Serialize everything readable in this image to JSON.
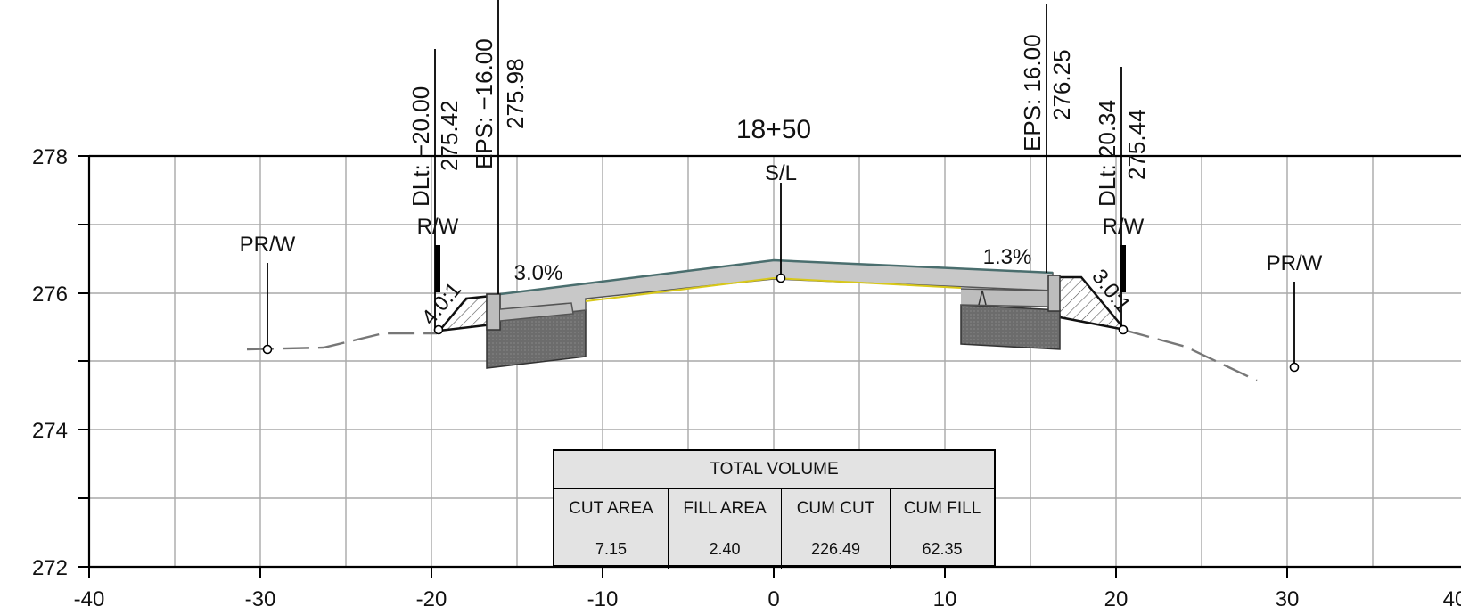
{
  "station": "18+50",
  "centerline_label": "S/L",
  "axes": {
    "x_ticks": [
      "-40",
      "-30",
      "-20",
      "-10",
      "0",
      "10",
      "20",
      "30",
      "40"
    ],
    "y_ticks": [
      "278",
      "276",
      "274",
      "272"
    ]
  },
  "labels": {
    "prw_left": "PR/W",
    "prw_right": "PR/W",
    "rw_left": "R/W",
    "rw_right": "R/W",
    "slope_left_pct": "3.0%",
    "slope_right_pct": "1.3%",
    "side_slope_left": "4.0:1",
    "side_slope_right": "3.0:1"
  },
  "callouts": {
    "dlt_left": {
      "offset": "DLt:  −20.00",
      "elev": "275.42"
    },
    "eps_left": {
      "offset": "EPS:  −16.00",
      "elev": "275.98"
    },
    "eps_right": {
      "offset": "EPS:  16.00",
      "elev": "276.25"
    },
    "dlt_right": {
      "offset": "DLt:  20.34",
      "elev": "275.44"
    }
  },
  "volume_table": {
    "title": "TOTAL VOLUME",
    "headers": [
      "CUT AREA",
      "FILL AREA",
      "CUM CUT",
      "CUM FILL"
    ],
    "values": [
      "7.15",
      "2.40",
      "226.49",
      "62.35"
    ]
  },
  "colors": {
    "pavement": "#c8c8c8",
    "pavement_edge": "#4a6e6e",
    "subgrade_line": "#d8c81a",
    "curb_block": "#6e6e6e",
    "ground_line": "#777777"
  }
}
